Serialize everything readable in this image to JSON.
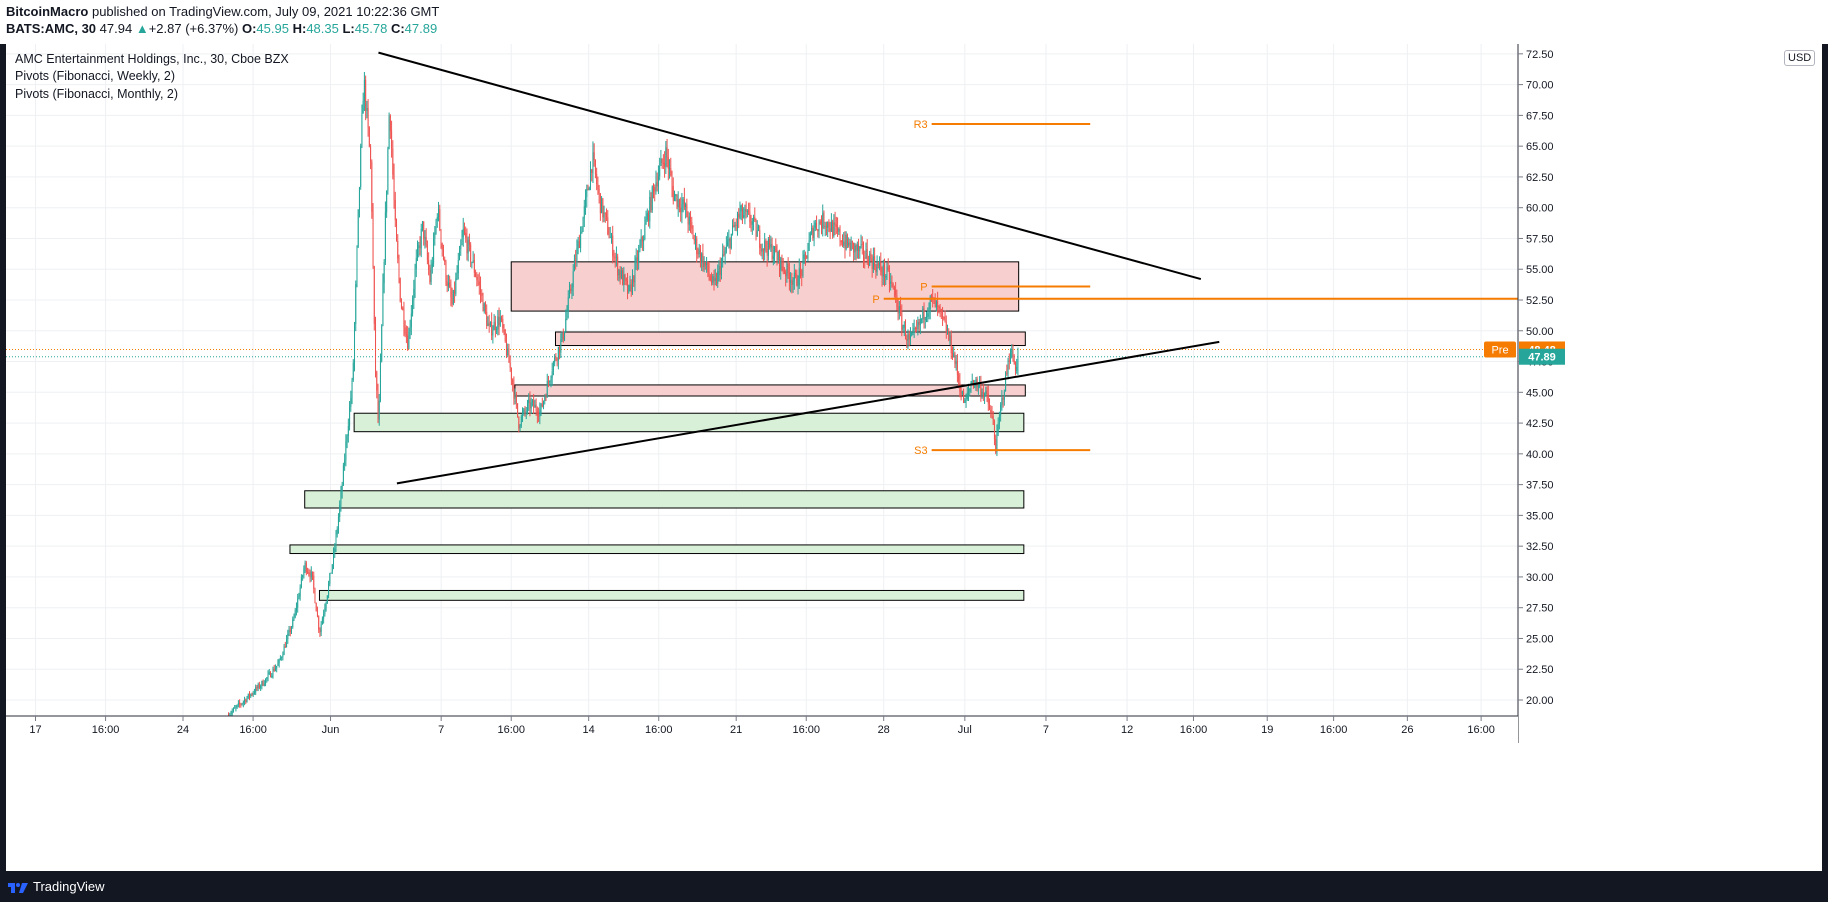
{
  "header": {
    "author": "BitcoinMacro",
    "published": "published on TradingView.com, July 09, 2021 10:22:36 GMT",
    "symbol": "BATS:AMC, 30",
    "last": "47.94",
    "change": "+2.87 (+6.37%)",
    "o_label": "O:",
    "o_value": "45.95",
    "h_label": "H:",
    "h_value": "48.35",
    "l_label": "L:",
    "l_value": "45.78",
    "c_label": "C:",
    "c_value": "47.89"
  },
  "legend": {
    "title": "AMC Entertainment Holdings, Inc., 30, Cboe BZX",
    "indicator1": "Pivots (Fibonacci, Weekly, 2)",
    "indicator2": "Pivots (Fibonacci, Monthly, 2)"
  },
  "currency_button": "USD",
  "footer": {
    "brand": "TradingView"
  },
  "colors": {
    "up": "#26a69a",
    "down": "#ef5350",
    "pivot": "#f57c00",
    "resistance_fill": "#f8cfcf",
    "support_fill": "#d9f0d8",
    "trendline": "#000000"
  },
  "chart_data": {
    "type": "candlestick",
    "ylim": [
      18.7,
      73.3
    ],
    "y_ticks": [
      "20.00",
      "22.50",
      "25.00",
      "27.50",
      "30.00",
      "32.50",
      "35.00",
      "37.50",
      "40.00",
      "42.50",
      "45.00",
      "47.50",
      "50.00",
      "52.50",
      "55.00",
      "57.50",
      "60.00",
      "62.50",
      "65.00",
      "67.50",
      "70.00",
      "72.50"
    ],
    "x_ticks": [
      "17",
      "16:00",
      "24",
      "16:00",
      "Jun",
      "7",
      "16:00",
      "14",
      "16:00",
      "21",
      "16:00",
      "28",
      "Jul",
      "7",
      "12",
      "16:00",
      "19",
      "16:00",
      "26",
      "16:00"
    ],
    "x_tick_slot": [
      0.4,
      1.35,
      2.4,
      3.35,
      4.4,
      5.9,
      6.85,
      7.9,
      8.85,
      9.9,
      10.85,
      11.9,
      13.0,
      14.1,
      15.2,
      16.1,
      17.1,
      18.0,
      19.0,
      20.0
    ],
    "x_slots": 20.5,
    "price_labels": [
      {
        "tag": "Pre",
        "value": "48.48",
        "color": "#f57c00",
        "price": 48.48
      },
      {
        "tag": "",
        "value": "47.89",
        "color": "#26a69a",
        "price": 47.89
      }
    ],
    "price_series": [
      [
        3.0,
        18.7
      ],
      [
        3.2,
        19.8
      ],
      [
        3.5,
        21.5
      ],
      [
        3.7,
        23.0
      ],
      [
        3.9,
        26.5
      ],
      [
        4.05,
        31.0
      ],
      [
        4.15,
        30.0
      ],
      [
        4.25,
        25.5
      ],
      [
        4.35,
        28.5
      ],
      [
        4.45,
        32.0
      ],
      [
        4.55,
        37.0
      ],
      [
        4.62,
        41.5
      ],
      [
        4.7,
        46.0
      ],
      [
        4.78,
        60.0
      ],
      [
        4.85,
        70.5
      ],
      [
        4.95,
        63.0
      ],
      [
        5.0,
        48.0
      ],
      [
        5.05,
        42.0
      ],
      [
        5.12,
        55.0
      ],
      [
        5.2,
        68.5
      ],
      [
        5.28,
        58.0
      ],
      [
        5.35,
        52.5
      ],
      [
        5.45,
        49.0
      ],
      [
        5.55,
        55.0
      ],
      [
        5.65,
        58.5
      ],
      [
        5.75,
        54.0
      ],
      [
        5.85,
        60.0
      ],
      [
        5.95,
        55.0
      ],
      [
        6.05,
        52.0
      ],
      [
        6.2,
        58.0
      ],
      [
        6.4,
        54.0
      ],
      [
        6.55,
        50.0
      ],
      [
        6.7,
        51.0
      ],
      [
        6.85,
        46.5
      ],
      [
        6.95,
        42.5
      ],
      [
        7.1,
        44.0
      ],
      [
        7.25,
        43.5
      ],
      [
        7.4,
        47.0
      ],
      [
        7.55,
        49.5
      ],
      [
        7.7,
        55.0
      ],
      [
        7.85,
        60.0
      ],
      [
        7.95,
        64.0
      ],
      [
        8.05,
        60.5
      ],
      [
        8.15,
        58.5
      ],
      [
        8.3,
        55.0
      ],
      [
        8.45,
        53.0
      ],
      [
        8.55,
        55.5
      ],
      [
        8.65,
        58.0
      ],
      [
        8.8,
        62.0
      ],
      [
        8.95,
        64.5
      ],
      [
        9.05,
        61.0
      ],
      [
        9.2,
        60.0
      ],
      [
        9.35,
        57.0
      ],
      [
        9.5,
        55.0
      ],
      [
        9.6,
        53.5
      ],
      [
        9.7,
        55.5
      ],
      [
        9.85,
        58.0
      ],
      [
        9.95,
        59.5
      ],
      [
        10.1,
        59.0
      ],
      [
        10.25,
        57.0
      ],
      [
        10.4,
        56.5
      ],
      [
        10.55,
        55.0
      ],
      [
        10.7,
        54.0
      ],
      [
        10.8,
        55.0
      ],
      [
        10.95,
        58.5
      ],
      [
        11.1,
        59.0
      ],
      [
        11.25,
        58.0
      ],
      [
        11.4,
        57.0
      ],
      [
        11.55,
        56.5
      ],
      [
        11.7,
        56.0
      ],
      [
        11.85,
        55.0
      ],
      [
        11.95,
        54.5
      ],
      [
        12.05,
        53.0
      ],
      [
        12.15,
        50.5
      ],
      [
        12.25,
        49.0
      ],
      [
        12.35,
        50.0
      ],
      [
        12.45,
        51.5
      ],
      [
        12.55,
        52.5
      ],
      [
        12.65,
        51.5
      ],
      [
        12.75,
        50.0
      ],
      [
        12.85,
        48.0
      ],
      [
        12.95,
        45.0
      ],
      [
        13.0,
        44.0
      ],
      [
        13.1,
        46.0
      ],
      [
        13.2,
        45.5
      ],
      [
        13.3,
        44.5
      ],
      [
        13.38,
        42.5
      ],
      [
        13.42,
        40.5
      ],
      [
        13.48,
        43.5
      ],
      [
        13.55,
        46.0
      ],
      [
        13.62,
        48.5
      ],
      [
        13.68,
        47.0
      ],
      [
        13.72,
        47.89
      ]
    ],
    "trendlines": [
      {
        "from": [
          5.05,
          72.6
        ],
        "to": [
          16.2,
          54.2
        ]
      },
      {
        "from": [
          5.3,
          37.6
        ],
        "to": [
          16.45,
          49.1
        ]
      }
    ],
    "zones": [
      {
        "kind": "resistance",
        "x0": 6.85,
        "x1": 13.73,
        "y0": 51.6,
        "y1": 55.6
      },
      {
        "kind": "resistance",
        "x0": 7.45,
        "x1": 13.82,
        "y0": 48.8,
        "y1": 49.9
      },
      {
        "kind": "resistance",
        "x0": 6.9,
        "x1": 13.82,
        "y0": 44.7,
        "y1": 45.6
      },
      {
        "kind": "support",
        "x0": 4.72,
        "x1": 13.8,
        "y0": 41.8,
        "y1": 43.3
      },
      {
        "kind": "support",
        "x0": 4.05,
        "x1": 13.8,
        "y0": 35.6,
        "y1": 37.0
      },
      {
        "kind": "support",
        "x0": 3.85,
        "x1": 13.8,
        "y0": 31.9,
        "y1": 32.6
      },
      {
        "kind": "support",
        "x0": 4.25,
        "x1": 13.8,
        "y0": 28.1,
        "y1": 28.9
      }
    ],
    "pivots": [
      {
        "label": "R3",
        "price": 66.8,
        "x0": 12.55,
        "x1": 14.7
      },
      {
        "label": "P",
        "price": 53.6,
        "x0": 12.55,
        "x1": 14.7
      },
      {
        "label": "P",
        "price": 52.6,
        "x0": 11.9,
        "x1": 20.5
      },
      {
        "label": "S3",
        "price": 40.3,
        "x0": 12.55,
        "x1": 14.7
      }
    ],
    "dotted_lines": [
      {
        "price": 48.48,
        "color": "#f57c00"
      },
      {
        "price": 47.89,
        "color": "#26a69a"
      }
    ]
  }
}
